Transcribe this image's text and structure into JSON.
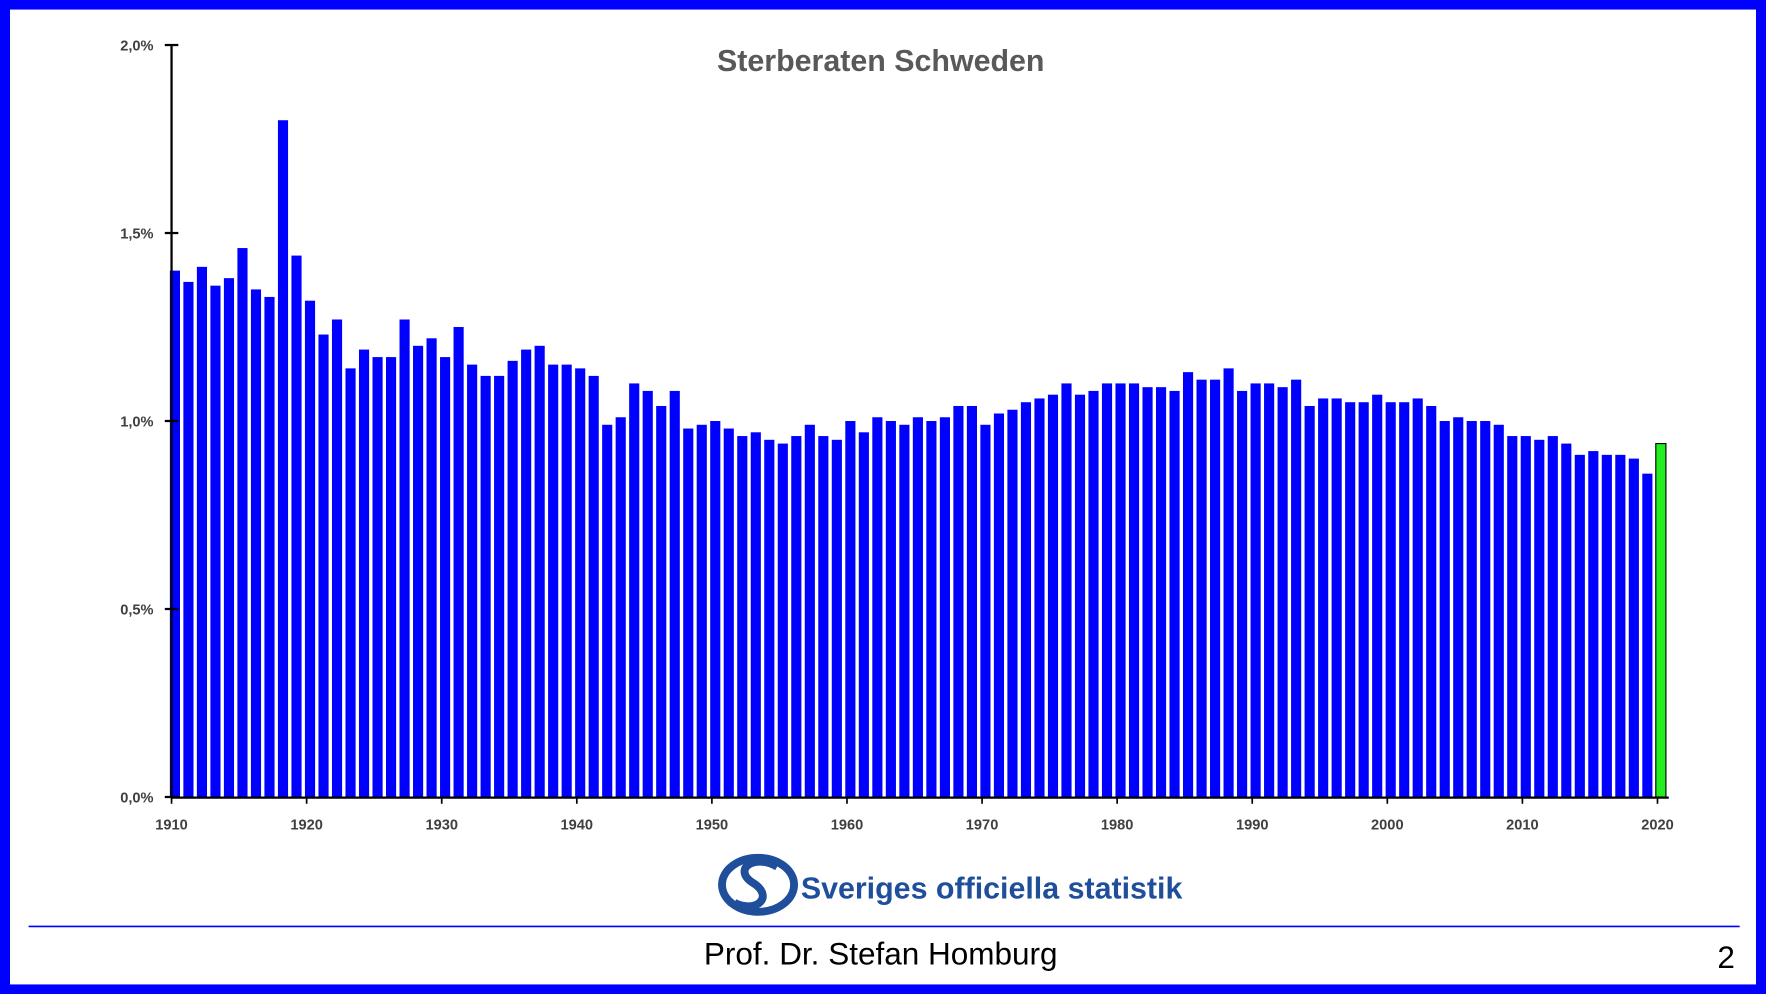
{
  "chart_data": {
    "type": "bar",
    "title": "Sterberaten Schweden",
    "xlabel": "",
    "ylabel": "",
    "ylim": [
      0,
      2.0
    ],
    "y_ticks": [
      "0,0%",
      "0,5%",
      "1,0%",
      "1,5%",
      "2,0%"
    ],
    "y_tick_values": [
      0,
      0.5,
      1.0,
      1.5,
      2.0
    ],
    "x_ticks": [
      "1910",
      "1920",
      "1930",
      "1940",
      "1950",
      "1960",
      "1970",
      "1980",
      "1990",
      "2000",
      "2010",
      "2020"
    ],
    "x_start": 1910,
    "values": [
      1.4,
      1.37,
      1.41,
      1.36,
      1.38,
      1.46,
      1.35,
      1.33,
      1.8,
      1.44,
      1.32,
      1.23,
      1.27,
      1.14,
      1.19,
      1.17,
      1.17,
      1.27,
      1.2,
      1.22,
      1.17,
      1.25,
      1.15,
      1.12,
      1.12,
      1.16,
      1.19,
      1.2,
      1.15,
      1.15,
      1.14,
      1.12,
      0.99,
      1.01,
      1.1,
      1.08,
      1.04,
      1.08,
      0.98,
      0.99,
      1.0,
      0.98,
      0.96,
      0.97,
      0.95,
      0.94,
      0.96,
      0.99,
      0.96,
      0.95,
      1.0,
      0.97,
      1.01,
      1.0,
      0.99,
      1.01,
      1.0,
      1.01,
      1.04,
      1.04,
      0.99,
      1.02,
      1.03,
      1.05,
      1.06,
      1.07,
      1.1,
      1.07,
      1.08,
      1.1,
      1.1,
      1.1,
      1.09,
      1.09,
      1.08,
      1.13,
      1.11,
      1.11,
      1.14,
      1.08,
      1.1,
      1.1,
      1.09,
      1.11,
      1.04,
      1.06,
      1.06,
      1.05,
      1.05,
      1.07,
      1.05,
      1.05,
      1.06,
      1.04,
      1.0,
      1.01,
      1.0,
      1.0,
      0.99,
      0.96,
      0.96,
      0.95,
      0.96,
      0.94,
      0.91,
      0.92,
      0.91,
      0.91,
      0.9,
      0.86,
      0.94
    ],
    "highlight_year": 2020,
    "grid": false,
    "legend": "none"
  },
  "colors": {
    "bar": "#0000ff",
    "highlight": "#22ee22",
    "frame": "#0000ff",
    "logo": "#1f4e9a"
  },
  "logo_text": "Sveriges officiella statistik",
  "footer": {
    "author": "Prof. Dr. Stefan Homburg",
    "page": "2"
  }
}
